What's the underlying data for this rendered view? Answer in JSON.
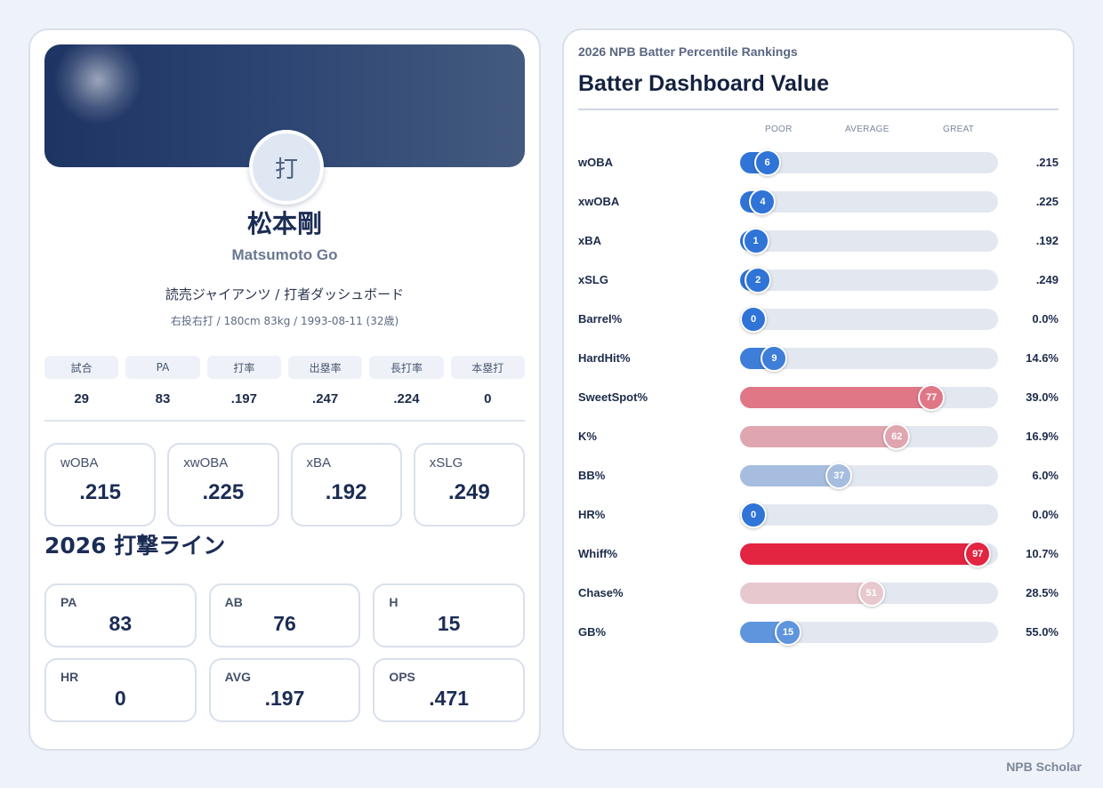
{
  "player": {
    "avatar_char": "打",
    "name_jp": "松本剛",
    "name_en": "Matsumoto Go",
    "team_line": "読売ジャイアンツ / 打者ダッシュボード",
    "profile_line": "右投右打 / 180cm 83kg / 1993-08-11 (32歳)"
  },
  "summary": {
    "headers": [
      "試合",
      "PA",
      "打率",
      "出塁率",
      "長打率",
      "本塁打"
    ],
    "values": [
      "29",
      "83",
      ".197",
      ".247",
      ".224",
      "0"
    ]
  },
  "expected": [
    {
      "label": "wOBA",
      "value": ".215"
    },
    {
      "label": "xwOBA",
      "value": ".225"
    },
    {
      "label": "xBA",
      "value": ".192"
    },
    {
      "label": "xSLG",
      "value": ".249"
    }
  ],
  "batting_line": {
    "title": "2026 打撃ライン",
    "items": [
      {
        "label": "PA",
        "value": "83"
      },
      {
        "label": "AB",
        "value": "76"
      },
      {
        "label": "H",
        "value": "15"
      },
      {
        "label": "HR",
        "value": "0"
      },
      {
        "label": "AVG",
        "value": ".197"
      },
      {
        "label": "OPS",
        "value": ".471"
      }
    ]
  },
  "rankings": {
    "subtitle": "2026 NPB Batter Percentile Rankings",
    "title": "Batter Dashboard Value",
    "scale": [
      "POOR",
      "AVERAGE",
      "GREAT"
    ],
    "rows": [
      {
        "metric": "wOBA",
        "percentile": 6,
        "value": ".215",
        "color": "#2f74d6"
      },
      {
        "metric": "xwOBA",
        "percentile": 4,
        "value": ".225",
        "color": "#2f74d6"
      },
      {
        "metric": "xBA",
        "percentile": 1,
        "value": ".192",
        "color": "#2f74d6"
      },
      {
        "metric": "xSLG",
        "percentile": 2,
        "value": ".249",
        "color": "#2f74d6"
      },
      {
        "metric": "Barrel%",
        "percentile": 0,
        "value": "0.0%",
        "color": "#2f74d6"
      },
      {
        "metric": "HardHit%",
        "percentile": 9,
        "value": "14.6%",
        "color": "#3e7ed8"
      },
      {
        "metric": "SweetSpot%",
        "percentile": 77,
        "value": "39.0%",
        "color": "#df7787"
      },
      {
        "metric": "K%",
        "percentile": 62,
        "value": "16.9%",
        "color": "#e0a6b0"
      },
      {
        "metric": "BB%",
        "percentile": 37,
        "value": "6.0%",
        "color": "#a7bddf"
      },
      {
        "metric": "HR%",
        "percentile": 0,
        "value": "0.0%",
        "color": "#2f74d6"
      },
      {
        "metric": "Whiff%",
        "percentile": 97,
        "value": "10.7%",
        "color": "#e32541"
      },
      {
        "metric": "Chase%",
        "percentile": 51,
        "value": "28.5%",
        "color": "#e8c8cf"
      },
      {
        "metric": "GB%",
        "percentile": 15,
        "value": "55.0%",
        "color": "#5f95dd"
      }
    ]
  },
  "footer": "NPB Scholar"
}
